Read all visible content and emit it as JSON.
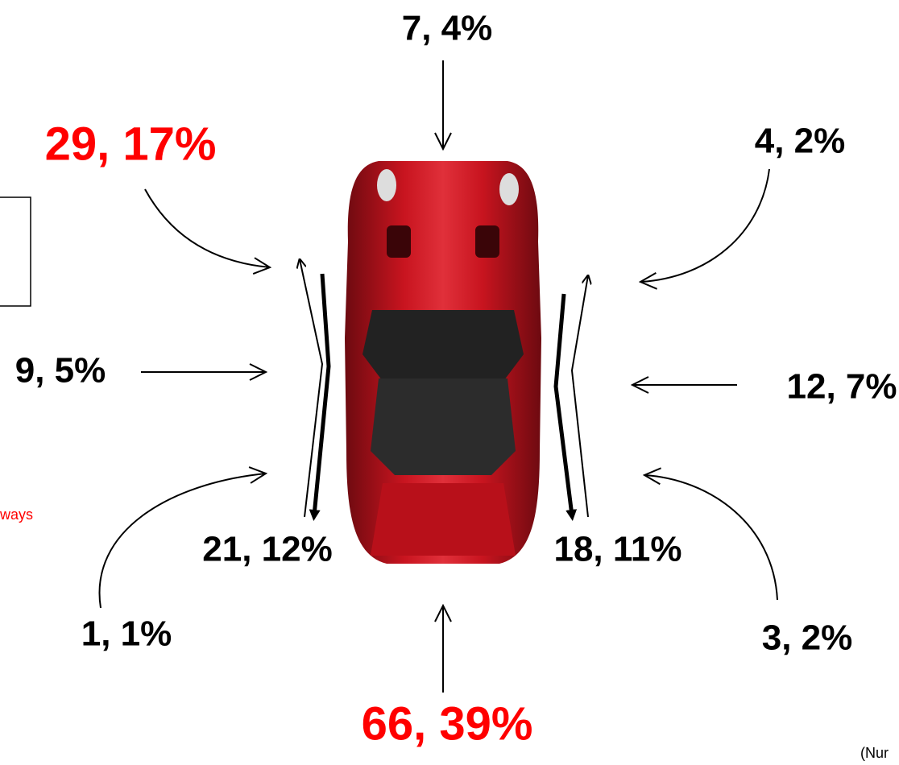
{
  "labels": [
    {
      "text": "7, 4%"
    },
    {
      "text": "29, 17%"
    },
    {
      "text": "4, 2%"
    },
    {
      "text": "9, 5%"
    },
    {
      "text": "12, 7%"
    },
    {
      "text": "21, 12%"
    },
    {
      "text": "18, 11%"
    },
    {
      "text": "1, 1%"
    },
    {
      "text": "3, 2%"
    },
    {
      "text": "66, 39%"
    }
  ],
  "side_note": "ways",
  "footnote": "(Nur"
}
